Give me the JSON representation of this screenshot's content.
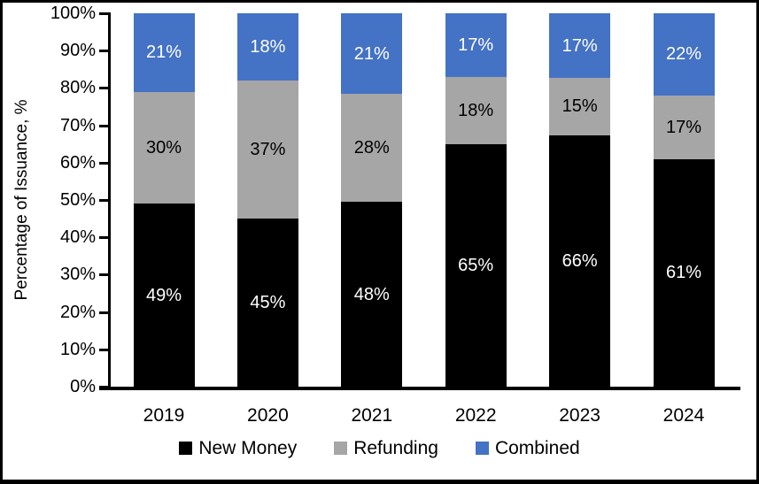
{
  "chart_data": {
    "type": "bar",
    "stacked": true,
    "orientation": "vertical",
    "title": "",
    "xlabel": "",
    "ylabel": "Percentage of Issuance, %",
    "ylim": [
      0,
      100
    ],
    "ytick_labels": [
      "0%",
      "10%",
      "20%",
      "30%",
      "40%",
      "50%",
      "60%",
      "70%",
      "80%",
      "90%",
      "100%"
    ],
    "ytick_values": [
      0,
      10,
      20,
      30,
      40,
      50,
      60,
      70,
      80,
      90,
      100
    ],
    "grid": false,
    "legend_position": "bottom",
    "label_suffix": "%",
    "categories": [
      "2019",
      "2020",
      "2021",
      "2022",
      "2023",
      "2024"
    ],
    "series": [
      {
        "name": "New Money",
        "color": "#000000",
        "label_color": "#ffffff",
        "values": [
          49,
          45,
          48,
          65,
          66,
          61
        ]
      },
      {
        "name": "Refunding",
        "color": "#A6A6A6",
        "label_color": "#000000",
        "values": [
          30,
          37,
          28,
          18,
          15,
          17
        ]
      },
      {
        "name": "Combined",
        "color": "#4472C4",
        "label_color": "#ffffff",
        "values": [
          21,
          18,
          21,
          17,
          17,
          22
        ]
      }
    ]
  },
  "colors": {
    "axis": "#000000",
    "background": "#ffffff",
    "border": "#000000"
  }
}
